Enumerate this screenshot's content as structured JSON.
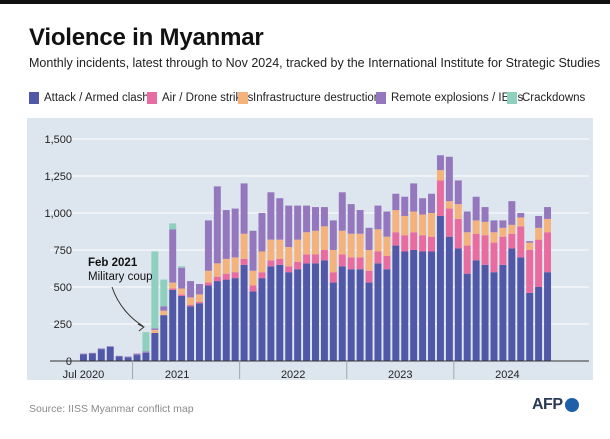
{
  "title": "Violence in Myanmar",
  "subtitle": "Monthly incidents, latest through to Nov 2024, tracked by the International Institute for Strategic Studies",
  "source": "Source: IISS Myanmar conflict map",
  "logo": "AFP",
  "colors": {
    "attack": "#5158a7",
    "air": "#e96ca0",
    "infra": "#f4b27c",
    "remote": "#9577bd",
    "crack": "#8fcfbd",
    "plot_bg": "#dde6ef"
  },
  "annotation": {
    "line1": "Feb 2021",
    "line2": "Military coup"
  },
  "chart_data": {
    "type": "bar",
    "stacked": true,
    "x": [
      "Jul 2020",
      "Aug 2020",
      "Sep 2020",
      "Oct 2020",
      "Nov 2020",
      "Dec 2020",
      "Jan 2021",
      "Feb 2021",
      "Mar 2021",
      "Apr 2021",
      "May 2021",
      "Jun 2021",
      "Jul 2021",
      "Aug 2021",
      "Sep 2021",
      "Oct 2021",
      "Nov 2021",
      "Dec 2021",
      "Jan 2022",
      "Feb 2022",
      "Mar 2022",
      "Apr 2022",
      "May 2022",
      "Jun 2022",
      "Jul 2022",
      "Aug 2022",
      "Sep 2022",
      "Oct 2022",
      "Nov 2022",
      "Dec 2022",
      "Jan 2023",
      "Feb 2023",
      "Mar 2023",
      "Apr 2023",
      "May 2023",
      "Jun 2023",
      "Jul 2023",
      "Aug 2023",
      "Sep 2023",
      "Oct 2023",
      "Nov 2023",
      "Dec 2023",
      "Jan 2024",
      "Feb 2024",
      "Mar 2024",
      "Apr 2024",
      "May 2024",
      "Jun 2024",
      "Jul 2024",
      "Aug 2024",
      "Sep 2024",
      "Oct 2024",
      "Nov 2024"
    ],
    "series": [
      {
        "name": "Attack / Armed clash",
        "key": "attack",
        "values": [
          45,
          50,
          80,
          95,
          30,
          25,
          40,
          55,
          190,
          310,
          480,
          440,
          370,
          390,
          510,
          540,
          550,
          560,
          650,
          470,
          560,
          640,
          650,
          600,
          620,
          660,
          660,
          680,
          530,
          640,
          620,
          620,
          530,
          660,
          620,
          780,
          740,
          750,
          740,
          740,
          980,
          840,
          760,
          590,
          680,
          650,
          600,
          650,
          760,
          700,
          460,
          500,
          600
        ]
      },
      {
        "name": "Air / Drone strikes",
        "key": "air",
        "values": [
          0,
          0,
          0,
          0,
          0,
          0,
          0,
          0,
          0,
          0,
          10,
          10,
          10,
          10,
          20,
          30,
          40,
          40,
          40,
          40,
          40,
          40,
          40,
          40,
          50,
          60,
          60,
          70,
          70,
          80,
          80,
          80,
          80,
          80,
          90,
          90,
          110,
          120,
          110,
          100,
          240,
          190,
          200,
          190,
          180,
          200,
          200,
          190,
          100,
          210,
          290,
          320,
          270
        ]
      },
      {
        "name": "Infrastructure destruction",
        "key": "infra",
        "values": [
          0,
          0,
          0,
          0,
          0,
          0,
          0,
          0,
          20,
          30,
          40,
          40,
          50,
          50,
          80,
          90,
          100,
          100,
          170,
          100,
          140,
          140,
          130,
          130,
          150,
          150,
          160,
          160,
          150,
          160,
          160,
          160,
          140,
          150,
          130,
          150,
          130,
          140,
          140,
          160,
          70,
          50,
          100,
          90,
          90,
          90,
          70,
          60,
          60,
          60,
          50,
          80,
          90
        ]
      },
      {
        "name": "Remote explosions / IEDs",
        "key": "remote",
        "values": [
          5,
          5,
          5,
          5,
          5,
          5,
          10,
          10,
          10,
          30,
          360,
          140,
          110,
          70,
          340,
          520,
          330,
          330,
          340,
          270,
          260,
          320,
          280,
          280,
          230,
          180,
          160,
          130,
          200,
          260,
          200,
          160,
          150,
          160,
          170,
          110,
          130,
          190,
          110,
          130,
          100,
          300,
          160,
          140,
          160,
          100,
          80,
          50,
          160,
          30,
          10,
          80,
          80
        ]
      },
      {
        "name": "Crackdowns",
        "key": "crack",
        "values": [
          0,
          0,
          0,
          0,
          0,
          0,
          0,
          130,
          520,
          180,
          40,
          10,
          0,
          0,
          0,
          0,
          0,
          0,
          0,
          0,
          0,
          0,
          0,
          0,
          0,
          0,
          0,
          0,
          0,
          0,
          0,
          0,
          0,
          0,
          0,
          0,
          0,
          0,
          0,
          0,
          0,
          0,
          0,
          0,
          0,
          0,
          0,
          0,
          0,
          0,
          0,
          0,
          0
        ]
      }
    ],
    "xticks": [
      {
        "label": "Jul 2020",
        "at": 0
      },
      {
        "label": "2021",
        "at": 10.5
      },
      {
        "label": "2022",
        "at": 23.5
      },
      {
        "label": "2023",
        "at": 35.5
      },
      {
        "label": "2024",
        "at": 47.5
      }
    ],
    "ylim": [
      0,
      1500
    ],
    "yticks": [
      {
        "value": 0,
        "label": "0"
      },
      {
        "value": 250,
        "label": "250"
      },
      {
        "value": 500,
        "label": "500"
      },
      {
        "value": 750,
        "label": "750"
      },
      {
        "value": 1000,
        "label": "1,000"
      },
      {
        "value": 1250,
        "label": "1,250"
      },
      {
        "value": 1500,
        "label": "1,500"
      }
    ],
    "xlabel": "",
    "ylabel": "",
    "grid": true,
    "legend": "top"
  }
}
